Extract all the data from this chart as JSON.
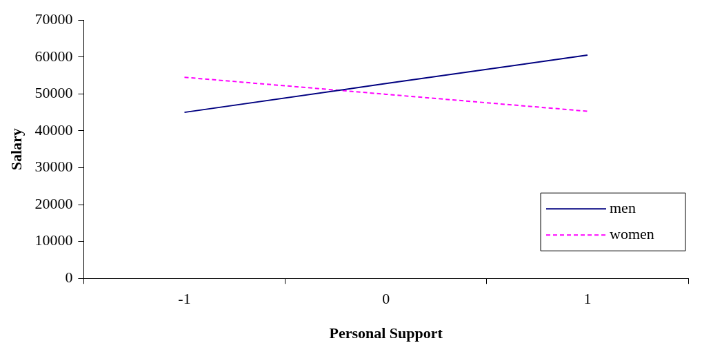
{
  "chart_data": {
    "type": "line",
    "xlabel": "Personal Support",
    "ylabel": "Salary",
    "categories": [
      "-1",
      "0",
      "1"
    ],
    "series": [
      {
        "name": "men",
        "color": "#000080",
        "values": [
          45000,
          52800,
          60500
        ],
        "line_style": "solid"
      },
      {
        "name": "women",
        "color": "#ff00ff",
        "values": [
          54500,
          49900,
          45300
        ],
        "line_style": "dashed"
      }
    ],
    "ylim": [
      0,
      70000
    ],
    "yticks": [
      0,
      10000,
      20000,
      30000,
      40000,
      50000,
      60000,
      70000
    ],
    "grid": false,
    "legend": "bottom right",
    "marker": "none"
  }
}
